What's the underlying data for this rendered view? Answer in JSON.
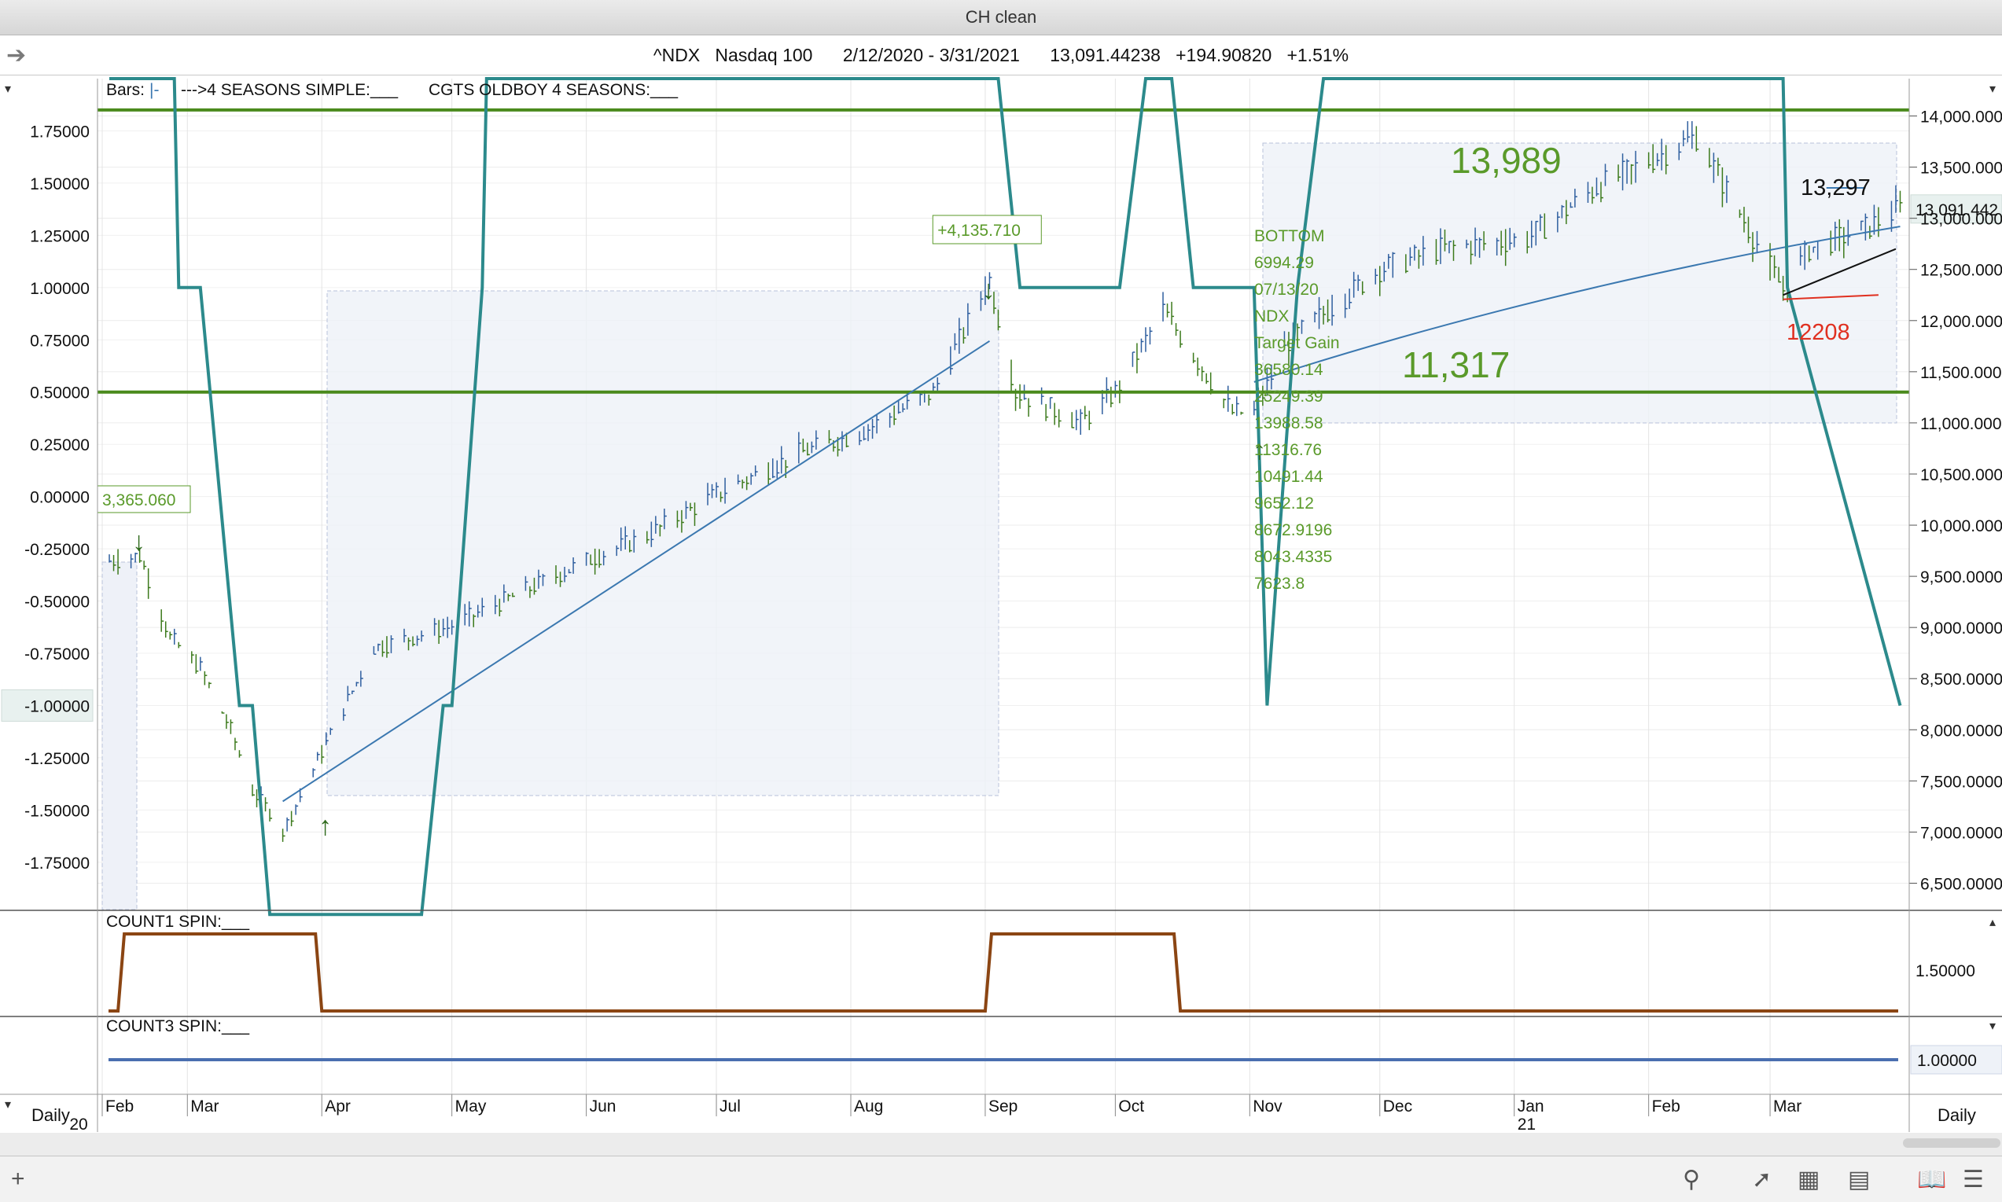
{
  "window": {
    "title": "CH clean"
  },
  "header": {
    "symbol": "^NDX",
    "name": "Nasdaq 100",
    "range": "2/12/2020 - 3/31/2021",
    "last": "13,091.44238",
    "change": "+194.90820",
    "change_pct": "+1.51%"
  },
  "legend": {
    "bars": "Bars:",
    "ind1": "--->4 SEASONS SIMPLE:___",
    "ind2": "CGTS OLDBOY 4 SEASONS:___"
  },
  "panels": {
    "p2": "COUNT1 SPIN:___",
    "p3": "COUNT3 SPIN:___"
  },
  "periodicity": {
    "left": "Daily",
    "right": "Daily"
  },
  "chart_data": {
    "type": "line",
    "left_axis": {
      "ylim": [
        -1.95,
        2.0
      ],
      "ticks": [
        "1.75000",
        "1.50000",
        "1.25000",
        "1.00000",
        "0.75000",
        "0.50000",
        "0.25000",
        "0.00000",
        "-0.25000",
        "-0.50000",
        "-0.75000",
        "-1.00000",
        "-1.25000",
        "-1.50000",
        "-1.75000"
      ],
      "highlight": "-1.00000"
    },
    "right_axis": {
      "ylim": [
        6350,
        14350
      ],
      "ticks": [
        "14,000.0000",
        "13,500.0000",
        "13,000.0000",
        "12,500.0000",
        "12,000.0000",
        "11,500.0000",
        "11,000.0000",
        "10,500.0000",
        "10,000.0000",
        "9,500.0000",
        "9,000.0000",
        "8,500.0000",
        "8,000.0000",
        "7,500.0000",
        "7,000.0000",
        "6,500.0000"
      ],
      "last_label": "13,091.442"
    },
    "x_axis": {
      "months": [
        "Feb",
        "Mar",
        "Apr",
        "May",
        "Jun",
        "Jul",
        "Aug",
        "Sep",
        "Oct",
        "Nov",
        "Dec",
        "Jan",
        "Feb",
        "Mar"
      ],
      "years": [
        "20",
        "21"
      ]
    },
    "price_series": {
      "name": "^NDX",
      "x": [
        "2020-02-12",
        "2020-02-19",
        "2020-02-26",
        "2020-03-04",
        "2020-03-11",
        "2020-03-16",
        "2020-03-20",
        "2020-03-23",
        "2020-03-31",
        "2020-04-13",
        "2020-04-30",
        "2020-05-15",
        "2020-06-01",
        "2020-06-15",
        "2020-07-01",
        "2020-07-20",
        "2020-08-03",
        "2020-08-20",
        "2020-09-02",
        "2020-09-08",
        "2020-09-23",
        "2020-10-01",
        "2020-10-12",
        "2020-10-28",
        "2020-11-02",
        "2020-11-10",
        "2020-12-01",
        "2020-12-15",
        "2021-01-04",
        "2021-01-20",
        "2021-02-12",
        "2021-03-04",
        "2021-03-10",
        "2021-03-23",
        "2021-03-31"
      ],
      "values": [
        9650,
        9700,
        8900,
        8600,
        8000,
        7400,
        7200,
        7000,
        7700,
        8800,
        9000,
        9300,
        9650,
        9900,
        10300,
        10700,
        10900,
        11300,
        12400,
        11300,
        11000,
        11300,
        12100,
        11100,
        11100,
        11800,
        12500,
        12700,
        12800,
        13300,
        13800,
        12300,
        12700,
        12900,
        13091
      ]
    },
    "regression": {
      "x": [
        "2020-03-23",
        "2020-09-02",
        "2020-11-02",
        "2021-03-31"
      ],
      "values": [
        7300,
        11800,
        11400,
        12920
      ]
    },
    "seasons_step": {
      "name": "4 SEASONS SIMPLE",
      "x": [
        "2020-02-12",
        "2020-02-27",
        "2020-02-28",
        "2020-03-04",
        "2020-03-13",
        "2020-03-16",
        "2020-03-20",
        "2020-04-24",
        "2020-04-29",
        "2020-05-01",
        "2020-05-08",
        "2020-05-09",
        "2020-09-04",
        "2020-09-09",
        "2020-10-02",
        "2020-10-08",
        "2020-10-14",
        "2020-10-19",
        "2020-11-02",
        "2020-11-05",
        "2020-11-12",
        "2020-11-18",
        "2021-03-04",
        "2021-03-05",
        "2021-03-31"
      ],
      "values": [
        2.0,
        2.0,
        1.0,
        1.0,
        -1.0,
        -1.0,
        -2.0,
        -2.0,
        -1.0,
        -1.0,
        1.0,
        2.0,
        2.0,
        1.0,
        1.0,
        2.0,
        2.0,
        1.0,
        1.0,
        -1.0,
        1.0,
        2.0,
        2.0,
        1.0,
        -1.0
      ]
    },
    "horizontal_levels": [
      1.85,
      0.5
    ],
    "annotations": {
      "gain": "+4,135.710",
      "start": "3,365.060",
      "target_high": "13,989",
      "target_low": "11,317",
      "recent_high": "13,297",
      "recent_low": "12208",
      "bottom_block": [
        "BOTTOM",
        "6994.29",
        "07/13/20",
        "NDX",
        "Target Gain",
        "36580.14",
        "25249.39",
        "13988.58",
        "11316.76",
        "10491.44",
        "9652.12",
        "8672.9196",
        "8043.4335",
        "7623.8"
      ]
    },
    "panel2": {
      "name": "COUNT1 SPIN",
      "tick": "1.50000",
      "on_intervals": [
        [
          "2020-02-14",
          "2020-04-01"
        ],
        [
          "2020-09-01",
          "2020-10-16"
        ]
      ]
    },
    "panel3": {
      "name": "COUNT3 SPIN",
      "tick": "1.00000",
      "value": 1.0
    },
    "colors": {
      "bars_up": "#2f5f9f",
      "bars_down": "#3c7a1c",
      "step": "#2c8a8c",
      "hline": "#4a8a1c",
      "regression": "#3b78b0",
      "panel2": "#8b4513",
      "panel3": "#4a6fb0",
      "label_green": "#5a9a2a",
      "label_red": "#e03020"
    }
  }
}
